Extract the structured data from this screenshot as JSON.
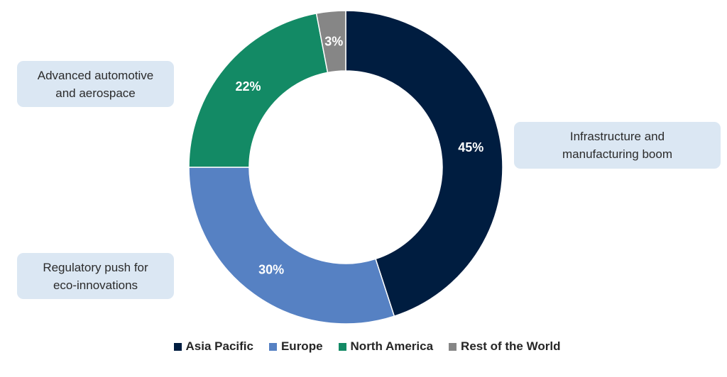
{
  "chart_data": {
    "type": "pie",
    "donut": true,
    "title": "",
    "categories": [
      "Asia Pacific",
      "Europe",
      "North America",
      "Rest of the World"
    ],
    "values": [
      45,
      30,
      22,
      3
    ],
    "value_labels": [
      "45%",
      "30%",
      "22%",
      "3%"
    ],
    "colors": [
      "#001d40",
      "#5681c3",
      "#138a65",
      "#868686"
    ],
    "legend_position": "bottom"
  },
  "callouts": {
    "automotive": [
      "Advanced automotive",
      "and aerospace"
    ],
    "infrastructure": [
      "Infrastructure and",
      "manufacturing boom"
    ],
    "regulatory": [
      "Regulatory push for",
      "eco-innovations"
    ]
  },
  "legend": [
    {
      "label": "Asia Pacific",
      "color": "#001d40"
    },
    {
      "label": "Europe",
      "color": "#5681c3"
    },
    {
      "label": "North America",
      "color": "#138a65"
    },
    {
      "label": "Rest of the World",
      "color": "#868686"
    }
  ]
}
